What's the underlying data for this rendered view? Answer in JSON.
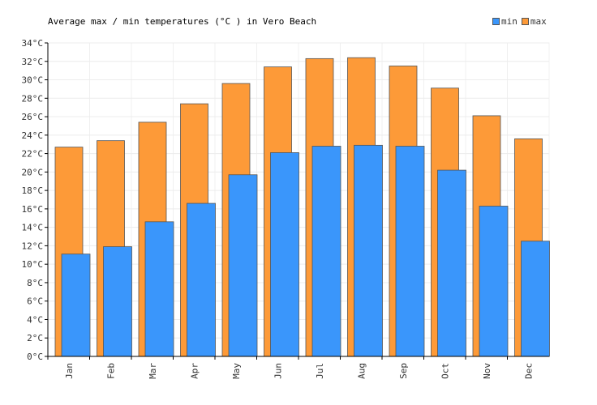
{
  "chart_data": {
    "type": "bar",
    "title": "Average max / min temperatures (°C ) in Vero Beach",
    "categories": [
      "Jan",
      "Feb",
      "Mar",
      "Apr",
      "May",
      "Jun",
      "Jul",
      "Aug",
      "Sep",
      "Oct",
      "Nov",
      "Dec"
    ],
    "series": [
      {
        "name": "min",
        "color": "#3a96fb",
        "values": [
          11.1,
          11.9,
          14.6,
          16.6,
          19.7,
          22.1,
          22.8,
          22.9,
          22.8,
          20.2,
          16.3,
          12.5
        ]
      },
      {
        "name": "max",
        "color": "#fd9a38",
        "values": [
          22.7,
          23.4,
          25.4,
          27.4,
          29.6,
          31.4,
          32.3,
          32.4,
          31.5,
          29.1,
          26.1,
          23.6
        ]
      }
    ],
    "ylim": [
      0,
      34
    ],
    "ytick_step": 2,
    "yunit": "°C",
    "grid": true,
    "legend_position": "top-right"
  }
}
